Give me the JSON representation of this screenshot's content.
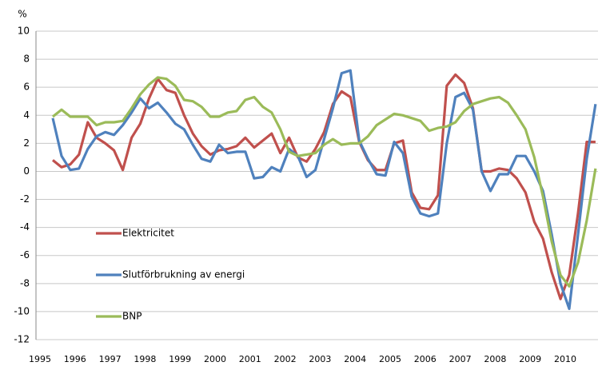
{
  "chart_data": {
    "type": "line",
    "y_label": "%",
    "categories": [
      "1995",
      null,
      null,
      null,
      "1996",
      null,
      null,
      null,
      "1997",
      null,
      null,
      null,
      "1998",
      null,
      null,
      null,
      "1999",
      null,
      null,
      null,
      "2000",
      null,
      null,
      null,
      "2001",
      null,
      null,
      null,
      "2002",
      null,
      null,
      null,
      "2003",
      null,
      null,
      null,
      "2004",
      null,
      null,
      null,
      "2005",
      null,
      null,
      null,
      "2006",
      null,
      null,
      null,
      "2007",
      null,
      null,
      null,
      "2008",
      null,
      null,
      null,
      "2009",
      null,
      null,
      null,
      "2010",
      null,
      null
    ],
    "series": [
      {
        "name": "Elektricitet",
        "color": "#c0504d",
        "values": [
          0.8,
          0.3,
          0.5,
          1.2,
          3.5,
          2.4,
          2.0,
          1.5,
          0.1,
          2.4,
          3.4,
          5.2,
          6.6,
          5.8,
          5.6,
          4.0,
          2.7,
          1.8,
          1.2,
          1.5,
          1.6,
          1.8,
          2.4,
          1.7,
          2.2,
          2.7,
          1.3,
          2.4,
          1.0,
          0.7,
          1.6,
          2.8,
          4.8,
          5.7,
          5.3,
          2.1,
          0.8,
          0.1,
          0.1,
          2.0,
          2.2,
          -1.5,
          -2.6,
          -2.7,
          -1.7,
          6.1,
          6.9,
          6.3,
          4.5,
          0.0,
          0.0,
          0.2,
          0.1,
          -0.5,
          -1.5,
          -3.6,
          -4.8,
          -7.2,
          -9.1,
          -7.4,
          -3.0,
          2.1,
          2.1
        ]
      },
      {
        "name": "Slutförbrukning av energi",
        "color": "#4f81bd",
        "values": [
          3.8,
          1.1,
          0.1,
          0.2,
          1.6,
          2.5,
          2.8,
          2.6,
          3.3,
          4.2,
          5.2,
          4.5,
          4.9,
          4.2,
          3.4,
          3.0,
          1.9,
          0.9,
          0.7,
          1.9,
          1.3,
          1.4,
          1.4,
          -0.5,
          -0.4,
          0.3,
          0.0,
          1.6,
          1.1,
          -0.4,
          0.1,
          2.3,
          4.5,
          7.0,
          7.2,
          2.2,
          0.9,
          -0.2,
          -0.3,
          2.1,
          1.3,
          -1.8,
          -3.0,
          -3.2,
          -3.0,
          2.0,
          5.3,
          5.6,
          4.4,
          0.0,
          -1.4,
          -0.2,
          -0.2,
          1.1,
          1.1,
          0.0,
          -1.4,
          -4.5,
          -8.0,
          -9.8,
          -4.5,
          0.9,
          4.8
        ]
      },
      {
        "name": "BNP",
        "color": "#9bbb59",
        "values": [
          3.9,
          4.4,
          3.9,
          3.9,
          3.9,
          3.3,
          3.5,
          3.5,
          3.6,
          4.5,
          5.5,
          6.2,
          6.7,
          6.6,
          6.1,
          5.1,
          5.0,
          4.6,
          3.9,
          3.9,
          4.2,
          4.3,
          5.1,
          5.3,
          4.6,
          4.2,
          3.0,
          1.4,
          1.1,
          1.2,
          1.3,
          1.9,
          2.3,
          1.9,
          2.0,
          2.0,
          2.5,
          3.3,
          3.7,
          4.1,
          4.0,
          3.8,
          3.6,
          2.9,
          3.1,
          3.2,
          3.5,
          4.3,
          4.8,
          5.0,
          5.2,
          5.3,
          4.9,
          4.0,
          3.0,
          1.0,
          -1.8,
          -5.0,
          -7.4,
          -8.2,
          -6.5,
          -3.5,
          0.2
        ]
      }
    ],
    "ylim": [
      -12,
      10
    ],
    "yticks": [
      -12,
      -10,
      -8,
      -6,
      -4,
      -2,
      0,
      2,
      4,
      6,
      8,
      10
    ],
    "grid": true
  }
}
